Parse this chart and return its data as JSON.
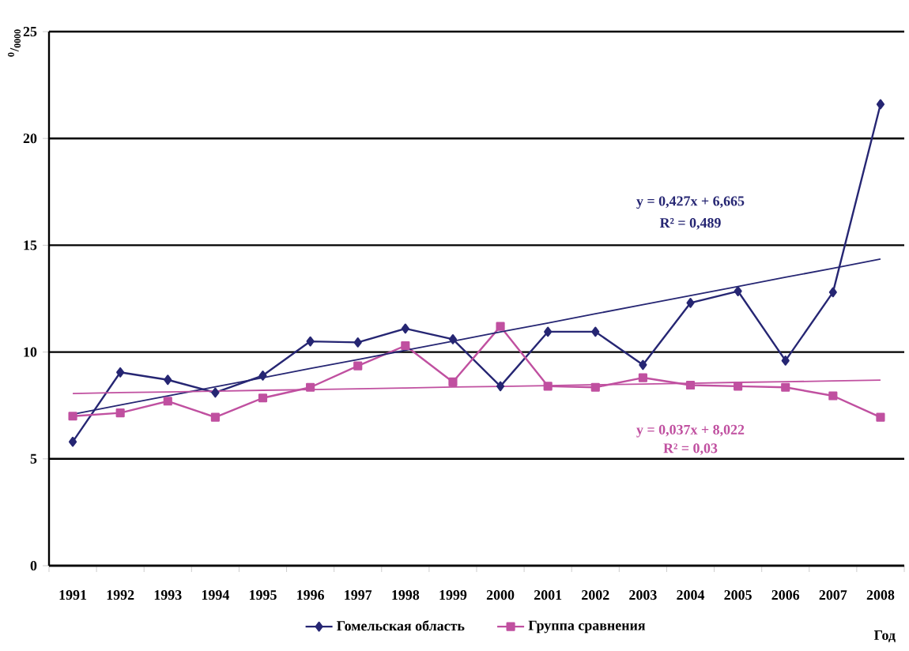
{
  "chart_data": {
    "type": "line",
    "ylabel": "$^{0}$/$_{0000}$",
    "xlabel": "Год",
    "categories": [
      "1991",
      "1992",
      "1993",
      "1994",
      "1995",
      "1996",
      "1997",
      "1998",
      "1999",
      "2000",
      "2001",
      "2002",
      "2003",
      "2004",
      "2005",
      "2006",
      "2007",
      "2008"
    ],
    "series": [
      {
        "name": "Гомельская область",
        "color": "#262673",
        "marker": "diamond",
        "values": [
          5.8,
          9.05,
          8.7,
          8.1,
          8.9,
          10.5,
          10.45,
          11.1,
          10.6,
          8.4,
          10.95,
          10.95,
          9.4,
          12.3,
          12.85,
          9.6,
          12.8,
          21.6
        ]
      },
      {
        "name": "Группа сравнения",
        "color": "#c050a0",
        "marker": "square",
        "values": [
          7.0,
          7.15,
          7.7,
          6.95,
          7.85,
          8.35,
          9.35,
          10.3,
          8.6,
          11.2,
          8.4,
          8.35,
          8.8,
          8.45,
          8.4,
          8.35,
          7.95,
          6.95
        ]
      },
      {
        "color": "#262673",
        "marker": "none",
        "values": [
          7.09,
          7.52,
          7.95,
          8.37,
          8.8,
          9.23,
          9.65,
          10.08,
          10.51,
          10.94,
          11.36,
          11.79,
          12.22,
          12.64,
          13.07,
          13.5,
          13.92,
          14.35
        ]
      },
      {
        "color": "#c050a0",
        "marker": "none",
        "values": [
          8.06,
          8.1,
          8.13,
          8.17,
          8.21,
          8.24,
          8.28,
          8.32,
          8.36,
          8.39,
          8.43,
          8.47,
          8.5,
          8.54,
          8.58,
          8.61,
          8.65,
          8.69
        ]
      }
    ],
    "annotations": [
      "y = 0,427x + 6,665",
      "R² = 0,489",
      "y = 0,037x + 8,022",
      "R² = 0,03"
    ],
    "ylim": [
      0,
      25
    ],
    "yticks": [
      0,
      5,
      10,
      15,
      20,
      25
    ],
    "grid": "y",
    "legend": "bottom",
    "line_style": "solid"
  }
}
